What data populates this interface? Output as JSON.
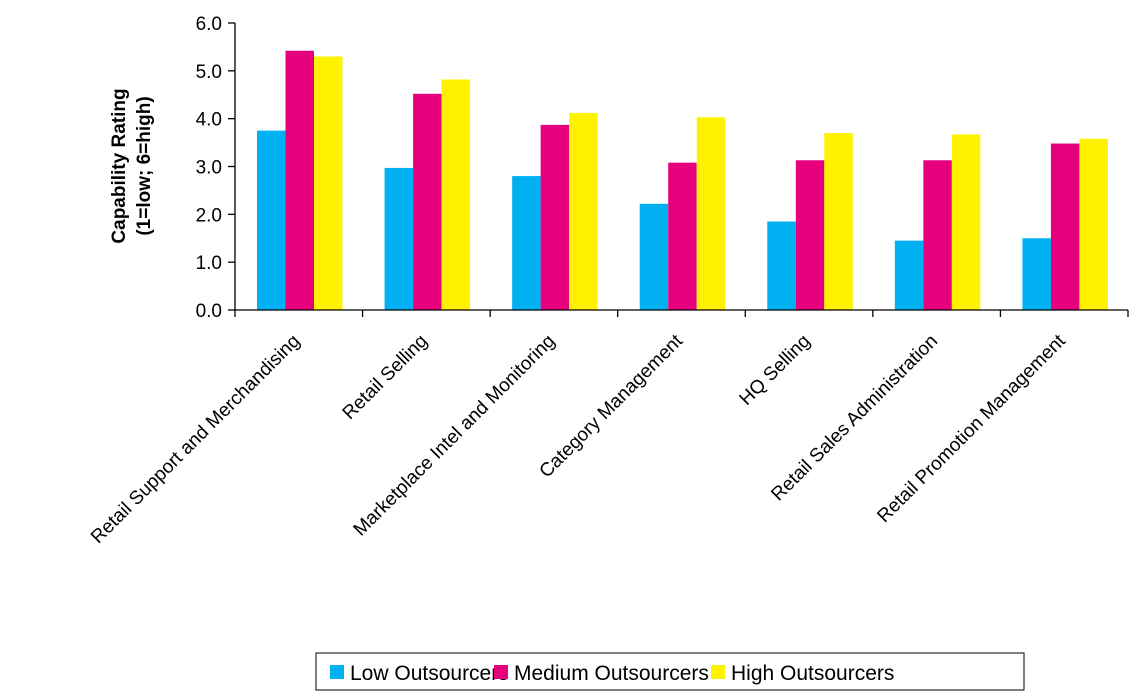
{
  "chart_data": {
    "type": "bar",
    "title": "",
    "xlabel": "",
    "ylabel_lines": [
      "Capability Rating",
      "(1=low; 6=high)"
    ],
    "ylim": [
      0,
      6
    ],
    "yticks": [
      "0.0",
      "1.0",
      "2.0",
      "3.0",
      "4.0",
      "5.0",
      "6.0"
    ],
    "grid": false,
    "legend_position": "bottom",
    "categories": [
      "Retail Support and Merchandising",
      "Retail Selling",
      "Marketplace Intel and Monitoring",
      "Category Management",
      "HQ Selling",
      "Retail Sales Administration",
      "Retail Promotion Management"
    ],
    "series": [
      {
        "name": "Low Outsourcers",
        "color": "#00B0F0",
        "values": [
          3.75,
          2.97,
          2.8,
          2.22,
          1.85,
          1.45,
          1.5
        ]
      },
      {
        "name": "Medium Outsourcers",
        "color": "#E6007E",
        "values": [
          5.42,
          4.52,
          3.87,
          3.08,
          3.13,
          3.13,
          3.48
        ]
      },
      {
        "name": "High Outsourcers",
        "color": "#FFF200",
        "values": [
          5.3,
          4.82,
          4.12,
          4.03,
          3.7,
          3.67,
          3.58
        ]
      }
    ]
  }
}
